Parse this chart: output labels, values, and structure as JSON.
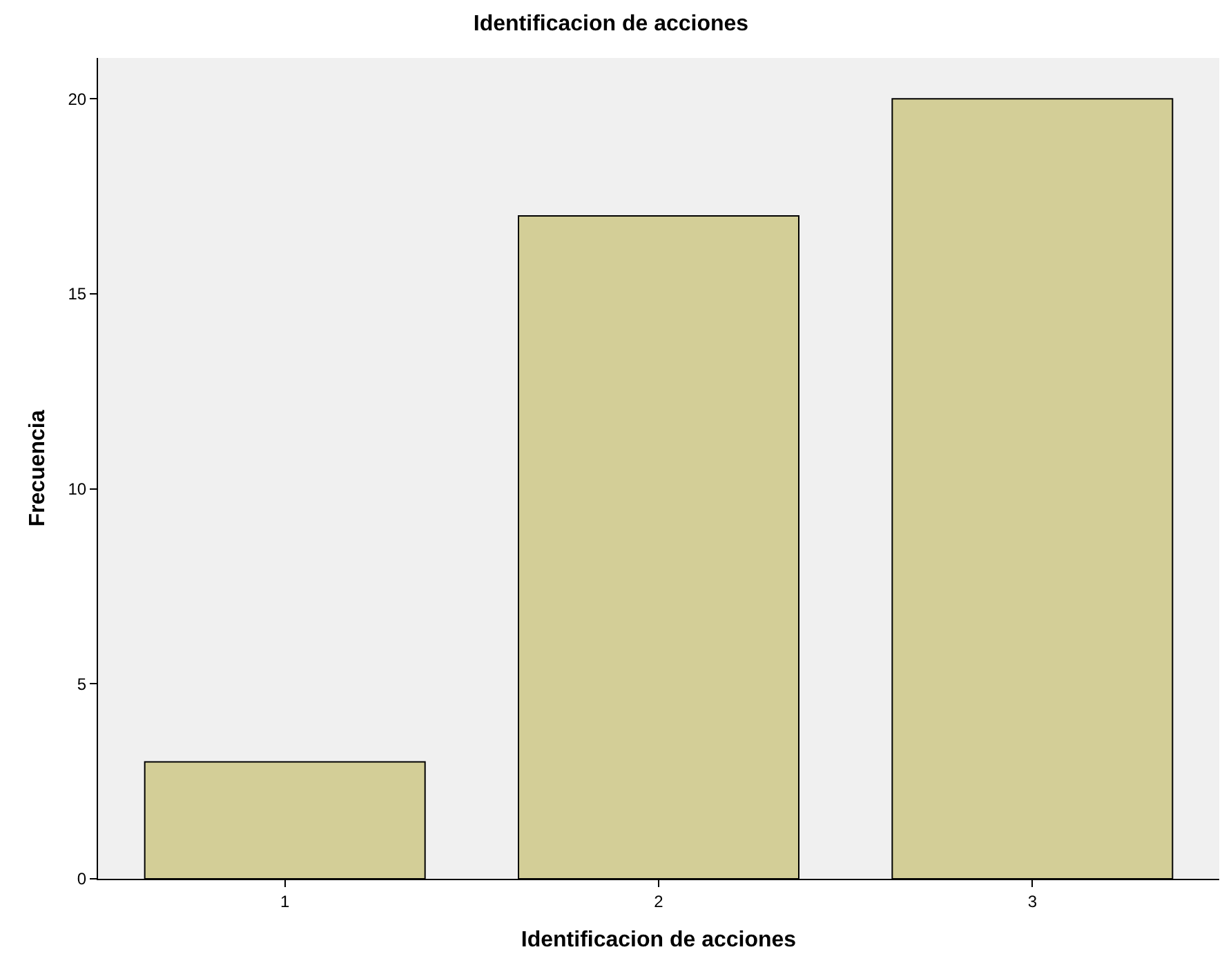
{
  "chart_data": {
    "type": "bar",
    "title": "Identificacion de acciones",
    "xlabel": "Identificacion de acciones",
    "ylabel": "Frecuencia",
    "categories": [
      "1",
      "2",
      "3"
    ],
    "values": [
      3,
      17,
      20
    ],
    "color": "#d3ce97",
    "ylim": [
      0,
      21.05
    ],
    "yticks": [
      0,
      5,
      10,
      15,
      20
    ],
    "grid": false
  }
}
